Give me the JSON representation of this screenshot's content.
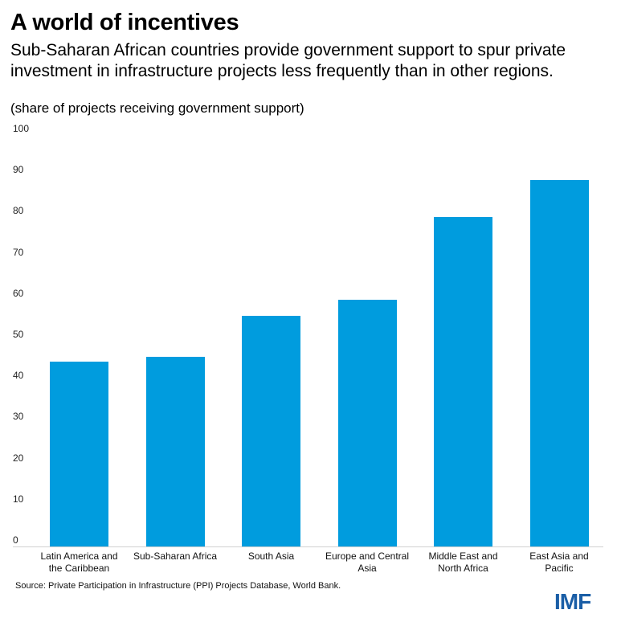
{
  "chart_data": {
    "type": "bar",
    "title": "A world of incentives",
    "subtitle": "Sub-Saharan African countries provide government support to spur private investment in infrastructure projects less frequently than in other regions.",
    "units": "(share of projects receiving government support)",
    "categories": [
      "Latin America and the Caribbean",
      "Sub-Saharan Africa",
      "South Asia",
      "Europe and Central Asia",
      "Middle East and North Africa",
      "East Asia and Pacific"
    ],
    "category_lines": [
      [
        "Latin America and",
        "the Caribbean"
      ],
      [
        "Sub-Saharan Africa"
      ],
      [
        "South Asia"
      ],
      [
        "Europe and Central",
        "Asia"
      ],
      [
        "Middle East and",
        "North Africa"
      ],
      [
        "East Asia and",
        "Pacific"
      ]
    ],
    "values": [
      45,
      46,
      56,
      60,
      80,
      89
    ],
    "xlabel": "",
    "ylabel": "",
    "ylim": [
      0,
      100
    ],
    "yticks": [
      0,
      10,
      20,
      30,
      40,
      50,
      60,
      70,
      80,
      90,
      100
    ],
    "grid": false,
    "legend": "none",
    "bar_color": "#009cde",
    "source": "Source: Private Participation in Infrastructure (PPI) Projects Database, World Bank.",
    "logo": "IMF"
  }
}
